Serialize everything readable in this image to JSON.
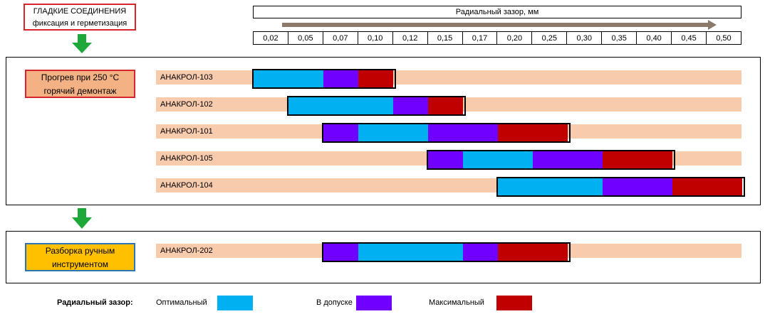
{
  "header": {
    "line1": "ГЛАДКИЕ СОЕДИНЕНИЯ",
    "line2": "фиксация и герметизация"
  },
  "scale": {
    "title": "Радиальный зазор, мм",
    "ticks": [
      "0,02",
      "0,05",
      "0,07",
      "0,10",
      "0,12",
      "0,15",
      "0,17",
      "0,20",
      "0,25",
      "0,30",
      "0,35",
      "0,40",
      "0,45",
      "0,50"
    ]
  },
  "group1": {
    "label_line1": "Прогрев при 250 °С",
    "label_line2": "горячий демонтаж",
    "rows": [
      {
        "name": "АНАКРОЛ-103",
        "segments": [
          {
            "type": "optimal",
            "from": 0,
            "to": 2
          },
          {
            "type": "tolerance",
            "from": 2,
            "to": 3
          },
          {
            "type": "maximum",
            "from": 3,
            "to": 4
          }
        ]
      },
      {
        "name": "АНАКРОЛ-102",
        "segments": [
          {
            "type": "optimal",
            "from": 1,
            "to": 4
          },
          {
            "type": "tolerance",
            "from": 4,
            "to": 5
          },
          {
            "type": "maximum",
            "from": 5,
            "to": 6
          }
        ]
      },
      {
        "name": "АНАКРОЛ-101",
        "segments": [
          {
            "type": "tolerance",
            "from": 2,
            "to": 3
          },
          {
            "type": "optimal",
            "from": 3,
            "to": 5
          },
          {
            "type": "tolerance",
            "from": 5,
            "to": 7
          },
          {
            "type": "maximum",
            "from": 7,
            "to": 9
          }
        ]
      },
      {
        "name": "АНАКРОЛ-105",
        "segments": [
          {
            "type": "tolerance",
            "from": 5,
            "to": 6
          },
          {
            "type": "optimal",
            "from": 6,
            "to": 8
          },
          {
            "type": "tolerance",
            "from": 8,
            "to": 10
          },
          {
            "type": "maximum",
            "from": 10,
            "to": 12
          }
        ]
      },
      {
        "name": "АНАКРОЛ-104",
        "segments": [
          {
            "type": "optimal",
            "from": 7,
            "to": 10
          },
          {
            "type": "tolerance",
            "from": 10,
            "to": 12
          },
          {
            "type": "maximum",
            "from": 12,
            "to": 14
          }
        ]
      }
    ]
  },
  "group2": {
    "label_line1": "Разборка ручным",
    "label_line2": "инструментом",
    "rows": [
      {
        "name": "АНАКРОЛ-202",
        "segments": [
          {
            "type": "tolerance",
            "from": 2,
            "to": 3
          },
          {
            "type": "optimal",
            "from": 3,
            "to": 6
          },
          {
            "type": "tolerance",
            "from": 6,
            "to": 7
          },
          {
            "type": "maximum",
            "from": 7,
            "to": 9
          }
        ]
      }
    ]
  },
  "legend": {
    "title": "Радиальный зазор:",
    "optimal": "Оптимальный",
    "tolerance": "В допуске",
    "maximum": "Максимальный"
  },
  "colors": {
    "optimal": "#00b0f0",
    "tolerance": "#7000ff",
    "maximum": "#c00000",
    "bar_background": "#f8cbad",
    "label1_fill": "#f4b183",
    "label2_fill": "#ffc000",
    "arrow_green": "#1ea83a"
  }
}
